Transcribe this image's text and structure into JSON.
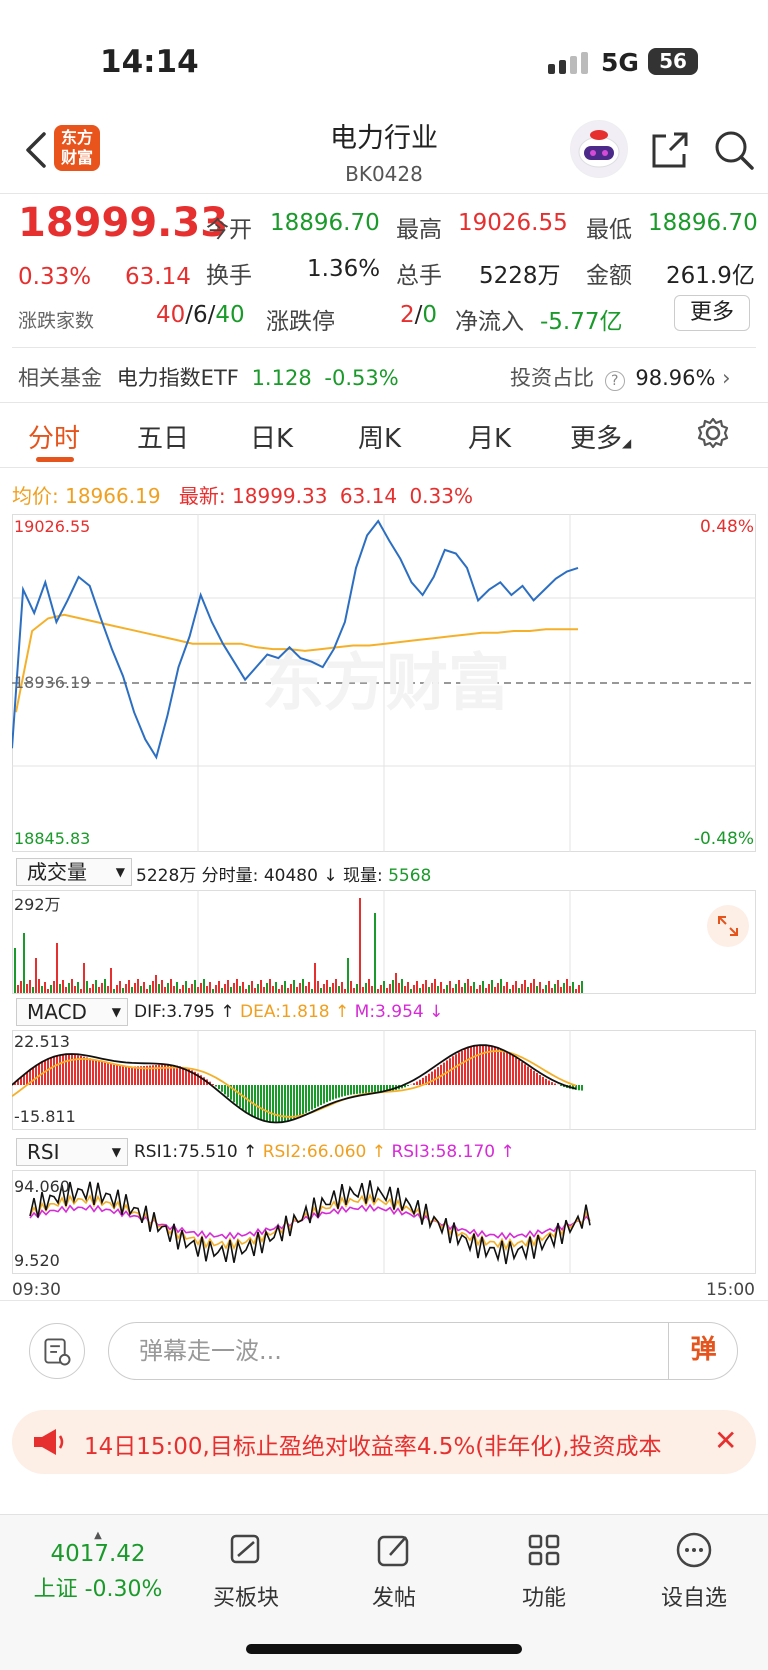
{
  "status_bar": {
    "time": "14:14",
    "network": "5G",
    "battery": "56"
  },
  "header": {
    "title": "电力行业",
    "code": "BK0428",
    "logo_text": "东方财富"
  },
  "quote": {
    "price": "18999.33",
    "change_pct": "0.33%",
    "change": "63.14",
    "open_label": "今开",
    "open": "18896.70",
    "high_label": "最高",
    "high": "19026.55",
    "low_label": "最低",
    "low": "18896.70",
    "turnover_label": "换手",
    "turnover": "1.36%",
    "volume_label": "总手",
    "volume": "5228万",
    "amount_label": "金额",
    "amount": "261.9亿",
    "breadth_label": "涨跌家数",
    "breadth_up": "40",
    "sep": "/",
    "breadth_flat": "6",
    "breadth_down": "40",
    "limit_label": "涨跌停",
    "limit_up": "2",
    "limit_down": "0",
    "netflow_label": "净流入",
    "netflow": "-5.77亿",
    "more_button": "更多"
  },
  "fund": {
    "label": "相关基金",
    "name": "电力指数ETF",
    "price": "1.128",
    "change": "-0.53%",
    "ratio_label": "投资占比",
    "ratio": "98.96%"
  },
  "tabs": [
    {
      "label": "分时"
    },
    {
      "label": "五日"
    },
    {
      "label": "日K"
    },
    {
      "label": "周K"
    },
    {
      "label": "月K"
    },
    {
      "label": "更多"
    }
  ],
  "intraday": {
    "avg_label": "均价:",
    "avg": "18966.19",
    "last_label": "最新:",
    "last": "18999.33",
    "last_change": "63.14",
    "last_pct": "0.33%",
    "y_top": "19026.55",
    "y_mid": "18936.19",
    "y_bottom": "18845.83",
    "pct_top": "0.48%",
    "pct_bottom": "-0.48%",
    "watermark": "东方财富"
  },
  "volume_panel": {
    "selector": "成交量",
    "total": "5228万",
    "minute_label": "分时量:",
    "minute_value": "40480",
    "now_label": "现量:",
    "now_value": "5568",
    "max_label": "292万"
  },
  "macd_panel": {
    "selector": "MACD",
    "dif": "DIF:3.795",
    "dea": "DEA:1.818",
    "m": "M:3.954",
    "top": "22.513",
    "bottom": "-15.811"
  },
  "rsi_panel": {
    "selector": "RSI",
    "rsi1": "RSI1:75.510",
    "rsi2": "RSI2:66.060",
    "rsi3": "RSI3:58.170",
    "top": "94.060",
    "bottom": "9.520",
    "time_start": "09:30",
    "time_end": "15:00"
  },
  "chart_data": {
    "type": "line",
    "title": "",
    "x_range": [
      "09:30",
      "15:00"
    ],
    "ylim": [
      18845.83,
      19026.55
    ],
    "reference": 18936.19,
    "series": [
      {
        "values": [
          18900,
          18988,
          18975,
          18992,
          18970,
          18982,
          18995,
          18990,
          18972,
          18955,
          18940,
          18920,
          18905,
          18895,
          18918,
          18945,
          18962,
          18985,
          18970,
          18958,
          18948,
          18938,
          18945,
          18952,
          18950,
          18956,
          18950,
          18948,
          18945,
          18955,
          18970,
          19000,
          19018,
          19026,
          19015,
          19005,
          18992,
          18985,
          18995,
          19010,
          19008,
          19000,
          18982,
          18988,
          18992,
          18985,
          18990,
          18982,
          18988,
          18994,
          18998,
          19000
        ]
      },
      {
        "values": [
          18920,
          18965,
          18972,
          18974,
          18972,
          18970,
          18968,
          18966,
          18964,
          18962,
          18960,
          18958,
          18958,
          18958,
          18958,
          18956,
          18955,
          18955,
          18954,
          18955,
          18956,
          18957,
          18957,
          18958,
          18959,
          18960,
          18961,
          18962,
          18963,
          18964,
          18964,
          18965,
          18965,
          18966,
          18966,
          18966
        ]
      }
    ]
  },
  "bottom": {
    "danmu_placeholder": "弹幕走一波...",
    "danmu_send": "弹",
    "notice": "14日15:00,目标止盈绝对收益率4.5%(非年化),投资成本",
    "nav": [
      {
        "label": "上证 -0.30%",
        "value": "4017.42"
      },
      {
        "label": "买板块"
      },
      {
        "label": "发帖"
      },
      {
        "label": "功能"
      },
      {
        "label": "设自选"
      }
    ]
  }
}
